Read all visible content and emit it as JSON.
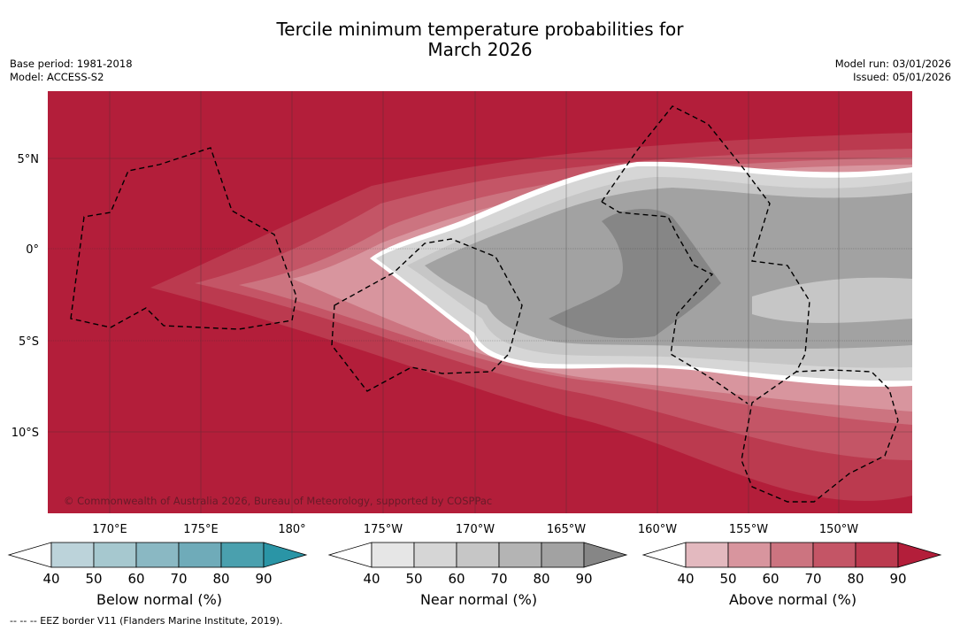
{
  "title": {
    "line1": "Tercile minimum temperature probabilities for",
    "line2": "March 2026"
  },
  "meta_left": {
    "base_period": "Base period: 1981-2018",
    "model": "Model: ACCESS-S2"
  },
  "meta_right": {
    "model_run": "Model run: 03/01/2026",
    "issued": "Issued: 05/01/2026"
  },
  "map": {
    "lat_labels": [
      "5°N",
      "0°",
      "5°S",
      "10°S"
    ],
    "lon_labels": [
      "170°E",
      "175°E",
      "180°",
      "175°W",
      "170°W",
      "165°W",
      "160°W",
      "155°W",
      "150°W"
    ],
    "copyright": "© Commonwealth of Australia 2026, Bureau of Meteorology, supported by COSPPac",
    "colors": {
      "above_base": "#b31e3a",
      "ocean_bg": "#b31e3a"
    }
  },
  "colorbars": [
    {
      "name": "below",
      "label": "Below normal (%)",
      "ticks": [
        "40",
        "50",
        "60",
        "70",
        "80",
        "90"
      ],
      "colors": [
        "#bcd3da",
        "#a6c8cf",
        "#8ab8c3",
        "#6fabb9",
        "#4aa0ae",
        "#2a95a6"
      ]
    },
    {
      "name": "near",
      "label": "Near normal (%)",
      "ticks": [
        "40",
        "50",
        "60",
        "70",
        "80",
        "90"
      ],
      "colors": [
        "#e6e6e6",
        "#d6d6d6",
        "#c6c6c6",
        "#b4b4b4",
        "#a2a2a2",
        "#868686"
      ]
    },
    {
      "name": "above",
      "label": "Above normal (%)",
      "ticks": [
        "40",
        "50",
        "60",
        "70",
        "80",
        "90"
      ],
      "colors": [
        "#e3b9bf",
        "#d8959e",
        "#cc7480",
        "#c45566",
        "#bb3a4f",
        "#b31e3a"
      ]
    }
  ],
  "legend_note": "--  --  -- EEZ border V11 (Flanders Marine Institute, 2019)."
}
